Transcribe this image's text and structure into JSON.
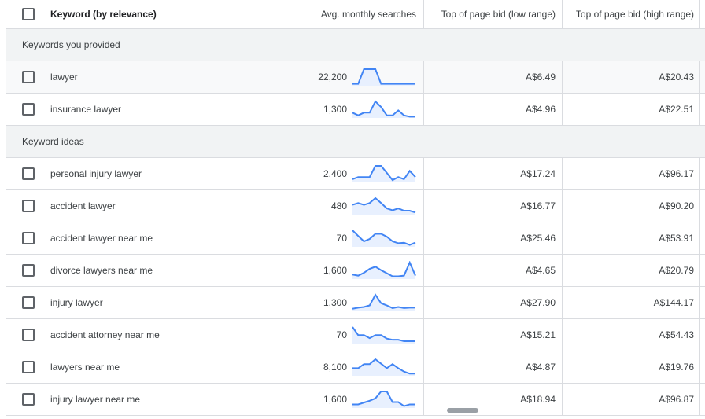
{
  "header": {
    "keyword": "Keyword (by relevance)",
    "searches": "Avg. monthly searches",
    "low": "Top of page bid (low range)",
    "high": "Top of page bid (high range)"
  },
  "groups": [
    {
      "label": "Keywords you provided",
      "rows": [
        {
          "keyword": "lawyer",
          "searches": "22,200",
          "low": "A$6.49",
          "high": "A$20.43",
          "trend": [
            5,
            5,
            70,
            70,
            70,
            5,
            5,
            5,
            5,
            5,
            5,
            5
          ]
        },
        {
          "keyword": "insurance lawyer",
          "searches": "1,300",
          "low": "A$4.96",
          "high": "A$22.51",
          "trend": [
            20,
            8,
            20,
            20,
            70,
            45,
            8,
            8,
            30,
            8,
            2,
            2
          ]
        }
      ]
    },
    {
      "label": "Keyword ideas",
      "rows": [
        {
          "keyword": "personal injury lawyer",
          "searches": "2,400",
          "low": "A$17.24",
          "high": "A$96.17",
          "trend": [
            15,
            28,
            28,
            28,
            97,
            97,
            54,
            9,
            28,
            15,
            66,
            28
          ]
        },
        {
          "keyword": "accident lawyer",
          "searches": "480",
          "low": "A$16.77",
          "high": "A$90.20",
          "trend": [
            40,
            48,
            40,
            48,
            70,
            48,
            24,
            16,
            24,
            14,
            14,
            6
          ]
        },
        {
          "keyword": "accident lawyer near me",
          "searches": "70",
          "low": "A$25.46",
          "high": "A$53.91",
          "trend": [
            67,
            43,
            20,
            30,
            52,
            52,
            40,
            20,
            12,
            14,
            5,
            15
          ]
        },
        {
          "keyword": "divorce lawyers near me",
          "searches": "1,600",
          "low": "A$4.65",
          "high": "A$20.79",
          "trend": [
            17,
            12,
            25,
            43,
            53,
            37,
            23,
            9,
            9,
            12,
            72,
            12
          ]
        },
        {
          "keyword": "injury lawyer",
          "searches": "1,300",
          "low": "A$27.90",
          "high": "A$144.17",
          "trend": [
            8,
            13,
            16,
            23,
            71,
            33,
            23,
            11,
            16,
            11,
            13,
            13
          ]
        },
        {
          "keyword": "accident attorney near me",
          "searches": "70",
          "low": "A$15.21",
          "high": "A$54.43",
          "trend": [
            68,
            33,
            33,
            20,
            33,
            33,
            18,
            13,
            13,
            7,
            7,
            7
          ]
        },
        {
          "keyword": "lawyers near me",
          "searches": "8,100",
          "low": "A$4.87",
          "high": "A$19.76",
          "trend": [
            30,
            30,
            48,
            48,
            70,
            50,
            30,
            48,
            30,
            15,
            6,
            6
          ]
        },
        {
          "keyword": "injury lawyer near me",
          "searches": "1,600",
          "low": "A$18.94",
          "high": "A$96.87",
          "trend": [
            12,
            12,
            20,
            28,
            38,
            68,
            68,
            22,
            22,
            5,
            12,
            12
          ]
        }
      ]
    }
  ],
  "colors": {
    "sparkline": "#4285f4",
    "sparkfill": "#e8f0fe"
  }
}
